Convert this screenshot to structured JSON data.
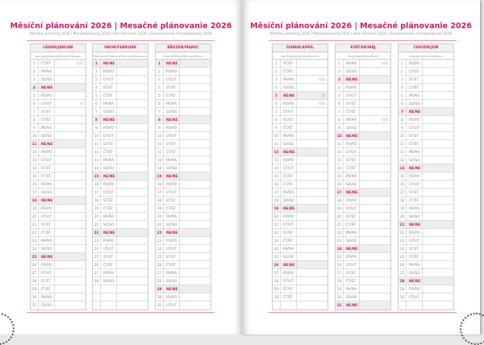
{
  "title": "Měsíční plánování 2026 | Mesačné plánovanie 2026",
  "subtitle": "Monthly planning 2026 | Monatsplanung 2026 | Havi tervezés 2026 | Ежемесячное планирование 2026",
  "weekdays": [
    "PO/PO",
    "ÚT/UT",
    "ST/ST",
    "ČT/ŠT",
    "PÁ/PIA",
    "SO/SO",
    "NE/NE"
  ],
  "colors": {
    "accent": "#d4196b",
    "sunday_bg": "#eeeeee"
  },
  "holiday_icon": "public-holiday-icon",
  "months": [
    {
      "name": "LEDEN/JANUÁR",
      "sub": "January/Januar/Január/Январь",
      "start": 3,
      "length": 31,
      "holidays": [
        {
          "day": 1,
          "icons": "ⓒⓢ"
        },
        {
          "day": 6,
          "icons": "ⓢ"
        }
      ]
    },
    {
      "name": "ÚNOR/FEBRUÁR",
      "sub": "February/Februar/Február/Февраль",
      "start": 6,
      "length": 28,
      "holidays": []
    },
    {
      "name": "BŘEZEN/MAREC",
      "sub": "March/März/Március/Март",
      "start": 6,
      "length": 31,
      "holidays": []
    },
    {
      "name": "DUBEN/APRÍL",
      "sub": "April/April/Április/Апрель",
      "start": 2,
      "length": 30,
      "holidays": [
        {
          "day": 3,
          "icons": "ⓒⓢ"
        },
        {
          "day": 5,
          "icons": "ⓢ"
        },
        {
          "day": 6,
          "icons": "ⓒⓢ"
        }
      ]
    },
    {
      "name": "KVĚTEN/MÁJ",
      "sub": "May/Mai/Május/Май",
      "start": 4,
      "length": 31,
      "holidays": [
        {
          "day": 1,
          "icons": "ⓒⓢ"
        },
        {
          "day": 8,
          "icons": "ⓒⓢ"
        }
      ]
    },
    {
      "name": "ČERVEN/JÚN",
      "sub": "June/Juni/Június/Июнь",
      "start": 0,
      "length": 30,
      "holidays": []
    }
  ]
}
